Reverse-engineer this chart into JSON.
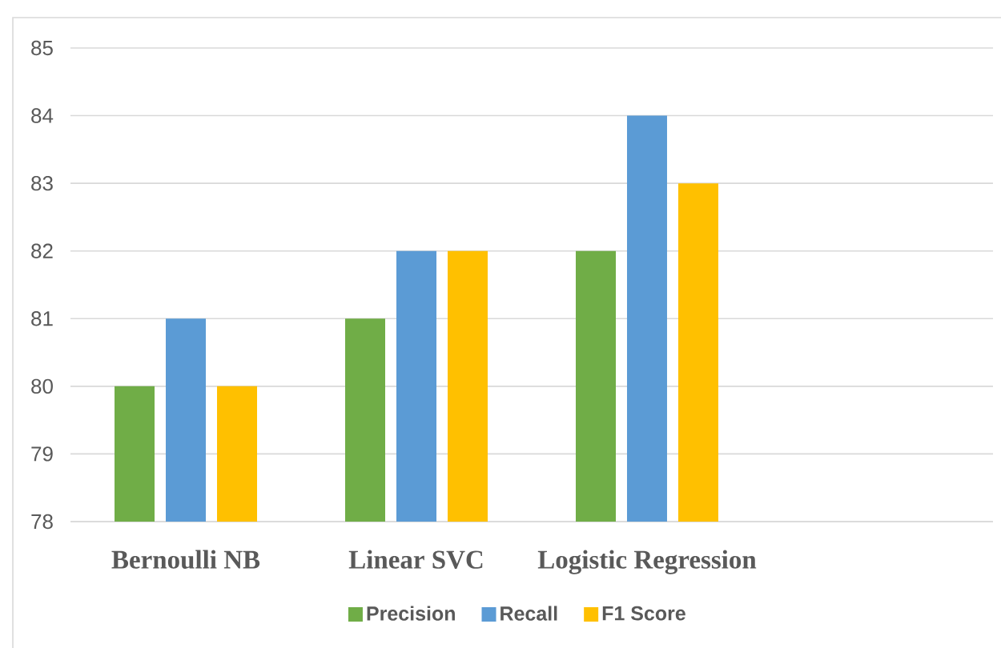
{
  "chart_data": {
    "type": "bar",
    "categories": [
      "Bernoulli NB",
      "Linear SVC",
      "Logistic Regression",
      null
    ],
    "series": [
      {
        "name": "Precision",
        "color": "#70ad47",
        "values": [
          80,
          81,
          82,
          null
        ]
      },
      {
        "name": "Recall",
        "color": "#5b9bd5",
        "values": [
          81,
          82,
          84,
          null
        ]
      },
      {
        "name": "F1 Score",
        "color": "#ffc000",
        "values": [
          80,
          82,
          83,
          null
        ]
      }
    ],
    "ylim": [
      78,
      85
    ],
    "yticks": [
      78,
      79,
      80,
      81,
      82,
      83,
      84,
      85
    ],
    "grid": "y",
    "legend": "bottom"
  }
}
